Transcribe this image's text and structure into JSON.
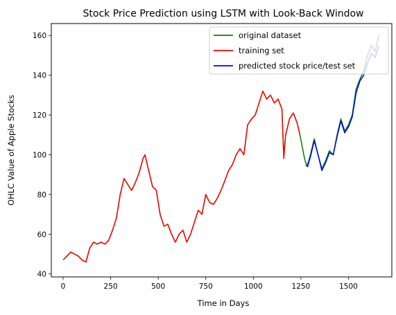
{
  "chart_data": {
    "type": "line",
    "title": "Stock Price Prediction using LSTM with Look-Back Window",
    "xlabel": "Time in Days",
    "ylabel": "OHLC Value of Apple Stocks",
    "xlim": [
      -62,
      1728
    ],
    "ylim": [
      38.5,
      166
    ],
    "xticks": [
      0,
      250,
      500,
      750,
      1000,
      1250,
      1500
    ],
    "yticks": [
      40,
      60,
      80,
      100,
      120,
      140,
      160
    ],
    "grid": false,
    "legend_position": "top-right",
    "series": [
      {
        "name": "original dataset",
        "color": "#008000",
        "x": [
          0,
          20,
          40,
          60,
          80,
          100,
          120,
          140,
          160,
          180,
          200,
          220,
          240,
          260,
          280,
          300,
          320,
          340,
          360,
          380,
          400,
          420,
          430,
          450,
          470,
          490,
          510,
          530,
          550,
          570,
          590,
          610,
          630,
          650,
          670,
          690,
          710,
          730,
          750,
          770,
          790,
          810,
          830,
          850,
          870,
          890,
          910,
          930,
          950,
          970,
          990,
          1010,
          1030,
          1050,
          1070,
          1090,
          1110,
          1130,
          1150,
          1160,
          1170,
          1190,
          1210,
          1230,
          1245,
          1255,
          1265,
          1275,
          1285,
          1300,
          1320,
          1340,
          1360,
          1380,
          1400,
          1420,
          1440,
          1460,
          1480,
          1500,
          1520,
          1540,
          1560,
          1580,
          1600,
          1620,
          1640,
          1660
        ],
        "values": [
          47,
          49,
          51,
          50,
          49,
          47,
          46,
          53,
          56,
          55,
          56,
          55,
          57,
          62,
          68,
          80,
          88,
          85,
          82,
          86,
          91,
          98,
          100,
          92,
          84,
          82,
          70,
          64,
          65,
          60,
          56,
          60,
          62,
          56,
          60,
          66,
          72,
          70,
          80,
          76,
          75,
          78,
          82,
          87,
          92,
          95,
          100,
          103,
          100,
          115,
          118,
          120,
          126,
          132,
          128,
          130,
          126,
          128,
          123,
          100,
          110,
          118,
          121,
          116,
          110,
          105,
          100,
          96,
          95,
          100,
          108,
          100,
          93,
          97,
          102,
          100,
          110,
          118,
          112,
          115,
          120,
          133,
          138,
          142,
          150,
          155,
          152,
          160
        ]
      },
      {
        "name": "training set",
        "color": "#ff0000",
        "x": [
          10,
          20,
          40,
          60,
          80,
          100,
          120,
          140,
          160,
          180,
          200,
          220,
          240,
          260,
          280,
          300,
          320,
          340,
          360,
          380,
          400,
          420,
          430,
          450,
          470,
          490,
          510,
          530,
          550,
          570,
          590,
          610,
          630,
          650,
          670,
          690,
          710,
          730,
          750,
          770,
          790,
          810,
          830,
          850,
          870,
          890,
          910,
          930,
          950,
          970,
          990,
          1010,
          1030,
          1050,
          1070,
          1090,
          1110,
          1130,
          1150,
          1160,
          1170,
          1190,
          1210,
          1230,
          1245
        ],
        "values": [
          48,
          49,
          51,
          50,
          49,
          47,
          46,
          53,
          56,
          55,
          56,
          55,
          57,
          62,
          68,
          80,
          88,
          85,
          82,
          86,
          91,
          98,
          100,
          92,
          84,
          82,
          70,
          64,
          65,
          60,
          56,
          60,
          62,
          56,
          60,
          66,
          72,
          70,
          80,
          76,
          75,
          78,
          82,
          87,
          92,
          95,
          100,
          103,
          100,
          115,
          118,
          120,
          126,
          132,
          128,
          130,
          126,
          128,
          123,
          98,
          110,
          118,
          121,
          116,
          110
        ]
      },
      {
        "name": "predicted stock price/test set",
        "color": "#0000ff",
        "x": [
          1275,
          1285,
          1300,
          1320,
          1340,
          1360,
          1380,
          1400,
          1420,
          1440,
          1460,
          1480,
          1500,
          1520,
          1540,
          1560,
          1580,
          1600,
          1620,
          1640,
          1660
        ],
        "values": [
          95,
          94,
          99,
          107,
          100,
          92,
          96,
          101,
          100,
          109,
          117,
          111,
          114,
          119,
          131,
          137,
          140,
          146,
          151,
          149,
          155
        ]
      }
    ]
  }
}
